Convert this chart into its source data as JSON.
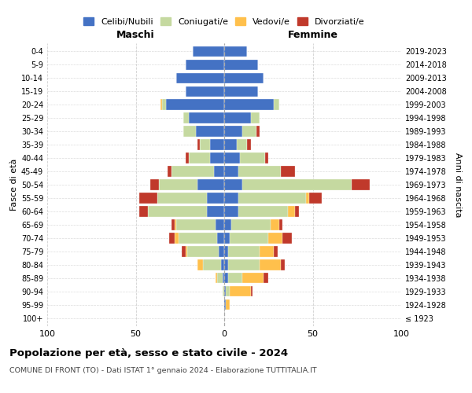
{
  "age_groups": [
    "100+",
    "95-99",
    "90-94",
    "85-89",
    "80-84",
    "75-79",
    "70-74",
    "65-69",
    "60-64",
    "55-59",
    "50-54",
    "45-49",
    "40-44",
    "35-39",
    "30-34",
    "25-29",
    "20-24",
    "15-19",
    "10-14",
    "5-9",
    "0-4"
  ],
  "birth_years": [
    "≤ 1923",
    "1924-1928",
    "1929-1933",
    "1934-1938",
    "1939-1943",
    "1944-1948",
    "1949-1953",
    "1954-1958",
    "1959-1963",
    "1964-1968",
    "1969-1973",
    "1974-1978",
    "1979-1983",
    "1984-1988",
    "1989-1993",
    "1994-1998",
    "1999-2003",
    "2004-2008",
    "2009-2013",
    "2014-2018",
    "2019-2023"
  ],
  "colors": {
    "celibi": "#4472c4",
    "coniugati": "#c5d9a0",
    "vedovi": "#ffc04c",
    "divorziati": "#c0392b"
  },
  "maschi": {
    "celibi": [
      0,
      0,
      0,
      1,
      2,
      3,
      4,
      5,
      10,
      10,
      15,
      6,
      8,
      8,
      16,
      20,
      33,
      22,
      27,
      22,
      18
    ],
    "coniugati": [
      0,
      0,
      1,
      3,
      10,
      18,
      22,
      22,
      33,
      28,
      22,
      24,
      12,
      6,
      7,
      3,
      2,
      0,
      0,
      0,
      0
    ],
    "vedovi": [
      0,
      0,
      0,
      1,
      3,
      1,
      2,
      1,
      0,
      0,
      0,
      0,
      0,
      0,
      0,
      0,
      1,
      0,
      0,
      0,
      0
    ],
    "divorziati": [
      0,
      0,
      0,
      0,
      0,
      2,
      3,
      2,
      5,
      10,
      5,
      2,
      2,
      1,
      0,
      0,
      0,
      0,
      0,
      0,
      0
    ]
  },
  "femmine": {
    "celibi": [
      0,
      1,
      1,
      2,
      2,
      2,
      3,
      4,
      8,
      8,
      10,
      8,
      9,
      7,
      10,
      15,
      28,
      19,
      22,
      19,
      13
    ],
    "coniugati": [
      0,
      0,
      2,
      8,
      18,
      18,
      22,
      22,
      28,
      38,
      62,
      24,
      14,
      6,
      8,
      5,
      3,
      0,
      0,
      0,
      0
    ],
    "vedovi": [
      0,
      2,
      12,
      12,
      12,
      8,
      8,
      5,
      4,
      2,
      0,
      0,
      0,
      0,
      0,
      0,
      0,
      0,
      0,
      0,
      0
    ],
    "divorziati": [
      0,
      0,
      1,
      3,
      2,
      2,
      5,
      2,
      2,
      7,
      10,
      8,
      2,
      2,
      2,
      0,
      0,
      0,
      0,
      0,
      0
    ]
  },
  "title_main": "Popolazione per età, sesso e stato civile - 2024",
  "title_sub": "COMUNE DI FRONT (TO) - Dati ISTAT 1° gennaio 2024 - Elaborazione TUTTITALIA.IT",
  "label_maschi": "Maschi",
  "label_femmine": "Femmine",
  "ylabel_left": "Fasce di età",
  "ylabel_right": "Anni di nascita",
  "xlim": 100,
  "legend_labels": [
    "Celibi/Nubili",
    "Coniugati/e",
    "Vedovi/e",
    "Divorziati/e"
  ],
  "background_color": "#ffffff",
  "grid_color": "#cccccc"
}
